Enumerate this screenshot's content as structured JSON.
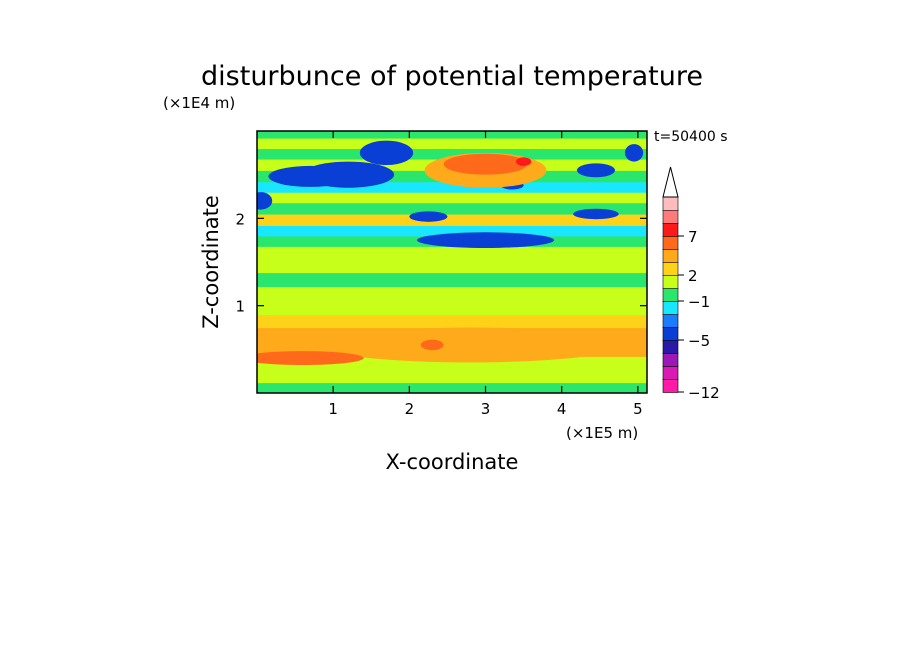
{
  "chart_data": {
    "type": "heatmap",
    "title": "disturbunce of potential temperature",
    "xlabel": "X-coordinate",
    "ylabel": "Z-coordinate",
    "x_unit": "(×1E5 m)",
    "y_unit": "(×1E4 m)",
    "time_label": "t=50400 s",
    "xlim": [
      0,
      5.12
    ],
    "ylim": [
      0,
      3.0
    ],
    "x_ticks": [
      "1",
      "2",
      "3",
      "4",
      "5"
    ],
    "x_tick_values": [
      1,
      2,
      3,
      4,
      5
    ],
    "y_ticks": [
      "1",
      "2"
    ],
    "y_tick_values": [
      1,
      2
    ],
    "colorbar": {
      "colors": [
        "#ff1aa8",
        "#d91ab4",
        "#9b1ab7",
        "#2a1aa8",
        "#0a3fd6",
        "#1a7cff",
        "#19e6ff",
        "#2be66d",
        "#c8ff1a",
        "#ffd21a",
        "#ffaa1a",
        "#ff6a1a",
        "#ff1a1a",
        "#ff7a7a",
        "#ffbcbc"
      ],
      "top_color": "#ffffff",
      "labels": [
        {
          "text": "7",
          "index": 12
        },
        {
          "text": "2",
          "index": 9
        },
        {
          "text": "−1",
          "index": 7
        },
        {
          "text": "−5",
          "index": 4
        },
        {
          "text": "−12",
          "index": 0
        }
      ]
    },
    "bands": [
      {
        "z": 0.0,
        "level": 7
      },
      {
        "z": 0.12,
        "level": 8
      },
      {
        "z": 0.25,
        "level": 8
      },
      {
        "z": 0.42,
        "level": 10
      },
      {
        "z": 0.58,
        "level": 10
      },
      {
        "z": 0.75,
        "level": 9
      },
      {
        "z": 0.9,
        "level": 8
      },
      {
        "z": 1.08,
        "level": 8
      },
      {
        "z": 1.22,
        "level": 7
      },
      {
        "z": 1.38,
        "level": 8
      },
      {
        "z": 1.52,
        "level": 8
      },
      {
        "z": 1.68,
        "level": 7
      },
      {
        "z": 1.8,
        "level": 6
      },
      {
        "z": 1.92,
        "level": 9
      },
      {
        "z": 2.05,
        "level": 7
      },
      {
        "z": 2.18,
        "level": 8
      },
      {
        "z": 2.3,
        "level": 6
      },
      {
        "z": 2.42,
        "level": 7
      },
      {
        "z": 2.55,
        "level": 8
      },
      {
        "z": 2.68,
        "level": 7
      },
      {
        "z": 2.8,
        "level": 8
      },
      {
        "z": 2.92,
        "level": 7
      }
    ],
    "features": [
      {
        "x": 1.2,
        "z": 2.5,
        "rx": 0.6,
        "rz": 0.15,
        "level": 4
      },
      {
        "x": 0.7,
        "z": 2.48,
        "rx": 0.55,
        "rz": 0.12,
        "level": 4
      },
      {
        "x": 1.7,
        "z": 2.75,
        "rx": 0.35,
        "rz": 0.14,
        "level": 4
      },
      {
        "x": 0.05,
        "z": 2.2,
        "rx": 0.15,
        "rz": 0.1,
        "level": 4
      },
      {
        "x": 3.0,
        "z": 1.75,
        "rx": 0.9,
        "rz": 0.09,
        "level": 4
      },
      {
        "x": 2.25,
        "z": 2.02,
        "rx": 0.25,
        "rz": 0.06,
        "level": 4
      },
      {
        "x": 3.35,
        "z": 2.38,
        "rx": 0.15,
        "rz": 0.05,
        "level": 4
      },
      {
        "x": 4.45,
        "z": 2.05,
        "rx": 0.3,
        "rz": 0.06,
        "level": 4
      },
      {
        "x": 4.45,
        "z": 2.55,
        "rx": 0.25,
        "rz": 0.08,
        "level": 4
      },
      {
        "x": 4.95,
        "z": 2.75,
        "rx": 0.12,
        "rz": 0.1,
        "level": 4
      },
      {
        "x": 3.0,
        "z": 2.55,
        "rx": 0.8,
        "rz": 0.2,
        "level": 10
      },
      {
        "x": 3.0,
        "z": 2.62,
        "rx": 0.55,
        "rz": 0.12,
        "level": 11
      },
      {
        "x": 3.5,
        "z": 2.65,
        "rx": 0.1,
        "rz": 0.05,
        "level": 12
      },
      {
        "x": 2.8,
        "z": 0.55,
        "rx": 2.0,
        "rz": 0.2,
        "level": 10
      },
      {
        "x": 0.6,
        "z": 0.4,
        "rx": 0.8,
        "rz": 0.08,
        "level": 11
      },
      {
        "x": 2.3,
        "z": 0.55,
        "rx": 0.15,
        "rz": 0.06,
        "level": 11
      }
    ]
  }
}
